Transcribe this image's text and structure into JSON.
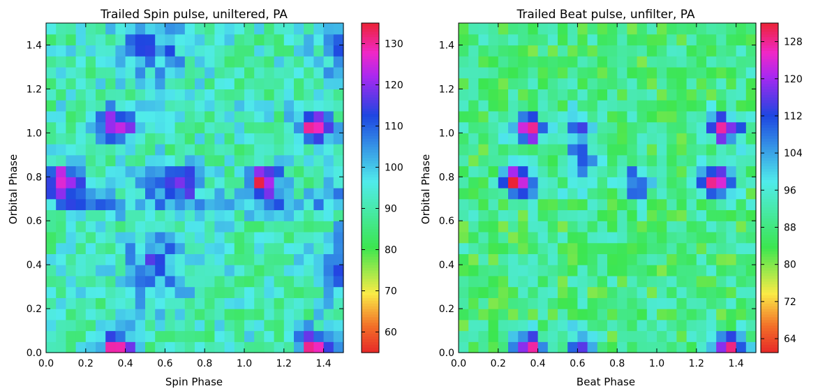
{
  "chart_data": [
    {
      "type": "heatmap",
      "title": "Trailed Spin pulse, uniltered, PA",
      "xlabel": "Spin Phase",
      "ylabel": "Orbital Phase",
      "xlim": [
        0.0,
        1.5
      ],
      "ylim": [
        0.0,
        1.5
      ],
      "xticks": [
        "0.0",
        "0.2",
        "0.4",
        "0.6",
        "0.8",
        "1.0",
        "1.2",
        "1.4"
      ],
      "yticks": [
        "0.0",
        "0.2",
        "0.4",
        "0.6",
        "0.8",
        "1.0",
        "1.2",
        "1.4"
      ],
      "colorbar": {
        "range": [
          55,
          135
        ],
        "ticks": [
          "60",
          "70",
          "80",
          "90",
          "100",
          "110",
          "120",
          "130"
        ]
      },
      "grid_size": [
        30,
        30
      ],
      "notes": "Pulse-like structure repeats with period 1.0 in both axes; peaks (~133) near spin phase 0.1, 0.35, 1.1, 1.35 at orbital phase ~0.75 and ~1.0 / ~0.05; troughs (~105-110) in blue band near spin phase 0.5-0.7 at orbital phase 0.35-0.45 and 1.0-1.1."
    },
    {
      "type": "heatmap",
      "title": "Trailed Beat pulse, unfilter, PA",
      "xlabel": "Beat Phase",
      "ylabel": "Orbital Phase",
      "xlim": [
        0.0,
        1.5
      ],
      "ylim": [
        0.0,
        1.5
      ],
      "xticks": [
        "0.0",
        "0.2",
        "0.4",
        "0.6",
        "0.8",
        "1.0",
        "1.2",
        "1.4"
      ],
      "yticks": [
        "0.0",
        "0.2",
        "0.4",
        "0.6",
        "0.8",
        "1.0",
        "1.2",
        "1.4"
      ],
      "colorbar": {
        "range": [
          61,
          132
        ],
        "ticks": [
          "64",
          "72",
          "80",
          "88",
          "96",
          "104",
          "112",
          "120",
          "128"
        ]
      },
      "grid_size": [
        30,
        30
      ],
      "notes": "Mostly green-cyan (85-100) field; high values (~130) near beat phase 0.3 and 1.3 at orbital phase ~0.78 and ~1.0/0.0; blue streaks (~110) near beat phase 0.55-0.7 at orbital phase 0.7-0.95 and 0.0-0.15."
    }
  ]
}
